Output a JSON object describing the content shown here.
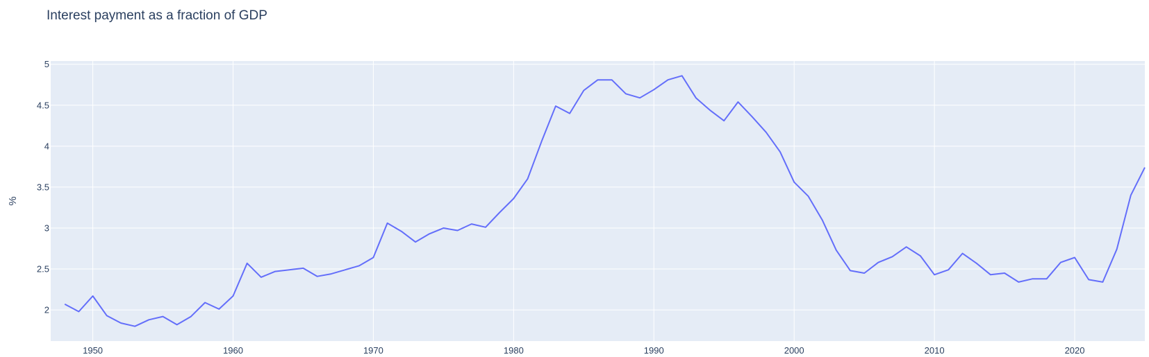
{
  "chart_data": {
    "type": "line",
    "title": "Interest payment as a fraction of GDP",
    "xlabel": "",
    "ylabel": "%",
    "xlim": [
      1947,
      2025
    ],
    "ylim": [
      1.62,
      5.04
    ],
    "grid": true,
    "legend": "none",
    "x_ticks": [
      1950,
      1960,
      1970,
      1980,
      1990,
      2000,
      2010,
      2020
    ],
    "y_ticks": [
      2,
      2.5,
      3,
      3.5,
      4,
      4.5,
      5
    ],
    "line_color": "#636efa",
    "plot_bg": "#e5ecf6",
    "grid_color": "#ffffff",
    "series": [
      {
        "x": [
          1948,
          1949,
          1950,
          1951,
          1952,
          1953,
          1954,
          1955,
          1956,
          1957,
          1958,
          1959,
          1960,
          1961,
          1962,
          1963,
          1964,
          1965,
          1966,
          1967,
          1968,
          1969,
          1970,
          1971,
          1972,
          1973,
          1974,
          1975,
          1976,
          1977,
          1978,
          1979,
          1980,
          1981,
          1982,
          1983,
          1984,
          1985,
          1986,
          1987,
          1988,
          1989,
          1990,
          1991,
          1992,
          1993,
          1994,
          1995,
          1996,
          1997,
          1998,
          1999,
          2000,
          2001,
          2002,
          2003,
          2004,
          2005,
          2006,
          2007,
          2008,
          2009,
          2010,
          2011,
          2012,
          2013,
          2014,
          2015,
          2016,
          2017,
          2018,
          2019,
          2020,
          2021,
          2022,
          2023,
          2024,
          2025
        ],
        "y": [
          2.07,
          1.98,
          2.17,
          1.93,
          1.84,
          1.8,
          1.88,
          1.92,
          1.82,
          1.92,
          2.09,
          2.01,
          2.17,
          2.57,
          2.4,
          2.47,
          2.49,
          2.51,
          2.41,
          2.44,
          2.49,
          2.54,
          2.64,
          3.06,
          2.96,
          2.83,
          2.93,
          3.0,
          2.97,
          3.05,
          3.01,
          3.19,
          3.36,
          3.6,
          4.06,
          4.49,
          4.4,
          4.68,
          4.81,
          4.81,
          4.64,
          4.59,
          4.69,
          4.81,
          4.86,
          4.59,
          4.44,
          4.31,
          4.54,
          4.36,
          4.17,
          3.93,
          3.56,
          3.39,
          3.1,
          2.73,
          2.48,
          2.45,
          2.58,
          2.65,
          2.77,
          2.66,
          2.43,
          2.49,
          2.69,
          2.57,
          2.43,
          2.45,
          2.34,
          2.38,
          2.38,
          2.58,
          2.64,
          2.37,
          2.34,
          2.74,
          3.4,
          3.74
        ]
      }
    ]
  }
}
